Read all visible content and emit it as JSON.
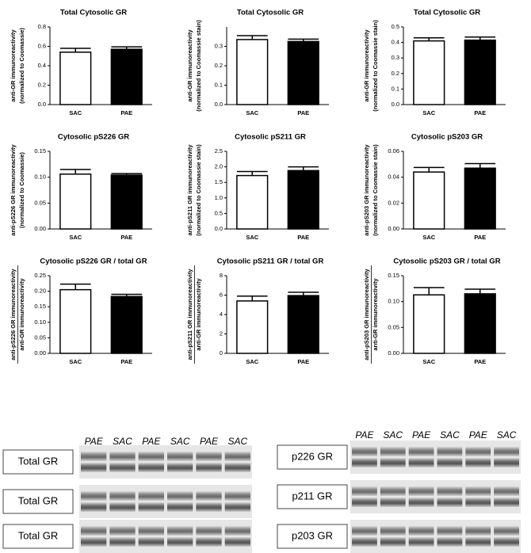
{
  "chart_data": [
    {
      "type": "bar",
      "title": "Total Cytosolic GR",
      "ylabel": [
        "anti-GR immunoreactivity",
        "(normalized to Coomassie)"
      ],
      "categories": [
        "SAC",
        "PAE"
      ],
      "values": [
        0.54,
        0.57
      ],
      "errors": [
        0.04,
        0.025
      ],
      "colors": [
        "#ffffff",
        "#000000"
      ],
      "ylim": [
        0,
        0.8
      ],
      "yticks": [
        {
          "value": 0,
          "label": "0.0"
        },
        0.2,
        0.4,
        0.6,
        0.8
      ]
    },
    {
      "type": "bar",
      "title": "Total Cytosolic GR",
      "ylabel": [
        "anti-GR immunoreactivity",
        "(normalized to Coomassie stain)"
      ],
      "categories": [
        "SAC",
        "PAE"
      ],
      "values": [
        0.335,
        0.325
      ],
      "errors": [
        0.02,
        0.012
      ],
      "colors": [
        "#ffffff",
        "#000000"
      ],
      "ylim": [
        0,
        0.4
      ],
      "yticks": [
        {
          "value": 0,
          "label": "0.0"
        },
        0.1,
        0.2,
        0.3
      ]
    },
    {
      "type": "bar",
      "title": "Total Cytosolic GR",
      "ylabel": [
        "anti-GR immunoreactivity",
        "(normalized to Coomassie stain)"
      ],
      "categories": [
        "SAC",
        "PAE"
      ],
      "values": [
        0.41,
        0.415
      ],
      "errors": [
        0.02,
        0.02
      ],
      "colors": [
        "#ffffff",
        "#000000"
      ],
      "ylim": [
        0,
        0.5
      ],
      "yticks": [
        {
          "value": 0,
          "label": "0.0"
        },
        0.1,
        0.2,
        0.3,
        0.4,
        0.5
      ]
    },
    {
      "type": "bar",
      "title": "Cytosolic pS226 GR",
      "ylabel": [
        "anti-pS226 GR immunoreactivity",
        "(normalized to Coomassie)"
      ],
      "categories": [
        "SAC",
        "PAE"
      ],
      "values": [
        0.106,
        0.104
      ],
      "errors": [
        0.009,
        0.003
      ],
      "colors": [
        "#ffffff",
        "#000000"
      ],
      "ylim": [
        0,
        0.15
      ],
      "yticks": [
        {
          "value": 0,
          "label": "0.00"
        },
        0.05,
        {
          "value": 0.1,
          "label": "0.10"
        },
        0.15
      ]
    },
    {
      "type": "bar",
      "title": "Cytosolic pS211 GR",
      "ylabel": [
        "anti-pS211 GR immunoreactivity",
        "(normalized to Coomassie stain)"
      ],
      "categories": [
        "SAC",
        "PAE"
      ],
      "values": [
        1.72,
        1.88
      ],
      "errors": [
        0.13,
        0.12
      ],
      "colors": [
        "#ffffff",
        "#000000"
      ],
      "ylim": [
        0,
        2.5
      ],
      "yticks": [
        {
          "value": 0,
          "label": "0.0"
        },
        0.5,
        {
          "value": 1,
          "label": "1.0"
        },
        1.5,
        {
          "value": 2,
          "label": "2.0"
        },
        2.5
      ]
    },
    {
      "type": "bar",
      "title": "Cytosolic pS203 GR",
      "ylabel": [
        "anti-pS203 GR immunoreactivity",
        "(normalized to Coomassie stain)"
      ],
      "categories": [
        "SAC",
        "PAE"
      ],
      "values": [
        0.044,
        0.047
      ],
      "errors": [
        0.0035,
        0.0035
      ],
      "colors": [
        "#ffffff",
        "#000000"
      ],
      "ylim": [
        0,
        0.06
      ],
      "yticks": [
        {
          "value": 0,
          "label": "0.00"
        },
        0.02,
        0.04,
        0.06
      ]
    },
    {
      "type": "bar",
      "title": "Cytosolic pS226 GR / total GR",
      "ylabel": [
        "anti-pS226 GR immunoreactivity",
        "anti-GR immunoreactivity"
      ],
      "ylabel_fraction": true,
      "categories": [
        "SAC",
        "PAE"
      ],
      "values": [
        0.205,
        0.183
      ],
      "errors": [
        0.018,
        0.007
      ],
      "colors": [
        "#ffffff",
        "#000000"
      ],
      "ylim": [
        0,
        0.25
      ],
      "yticks": [
        {
          "value": 0,
          "label": "0.00"
        },
        0.05,
        {
          "value": 0.1,
          "label": "0.10"
        },
        0.15,
        {
          "value": 0.2,
          "label": "0.20"
        },
        0.25
      ]
    },
    {
      "type": "bar",
      "title": "Cytosolic pS211 GR / total GR",
      "ylabel": [
        "anti-pS211 GR immunoreactivity",
        "anti-GR immunoreactivity"
      ],
      "ylabel_fraction": true,
      "categories": [
        "SAC",
        "PAE"
      ],
      "values": [
        5.4,
        5.95
      ],
      "errors": [
        0.5,
        0.35
      ],
      "colors": [
        "#ffffff",
        "#000000"
      ],
      "ylim": [
        0,
        8
      ],
      "yticks": [
        0,
        2,
        4,
        6,
        8
      ]
    },
    {
      "type": "bar",
      "title": "Cytosolic pS203 GR / total GR",
      "ylabel": [
        "anti-pS203 GR immunoreactivity",
        "anti-GR immunoreactivity"
      ],
      "ylabel_fraction": true,
      "categories": [
        "SAC",
        "PAE"
      ],
      "values": [
        0.113,
        0.115
      ],
      "errors": [
        0.014,
        0.009
      ],
      "colors": [
        "#ffffff",
        "#000000"
      ],
      "ylim": [
        0,
        0.15
      ],
      "yticks": [
        {
          "value": 0,
          "label": "0.00"
        },
        0.05,
        {
          "value": 0.1,
          "label": "0.10"
        },
        0.15
      ]
    }
  ],
  "blots": {
    "left": {
      "lanes": [
        "PAE",
        "SAC",
        "PAE",
        "SAC",
        "PAE",
        "SAC"
      ],
      "labels": [
        "Total GR",
        "Total GR",
        "Total GR"
      ]
    },
    "right": {
      "lanes": [
        "PAE",
        "SAC",
        "PAE",
        "SAC",
        "PAE",
        "SAC"
      ],
      "labels": [
        "p226 GR",
        "p211 GR",
        "p203 GR"
      ]
    }
  }
}
